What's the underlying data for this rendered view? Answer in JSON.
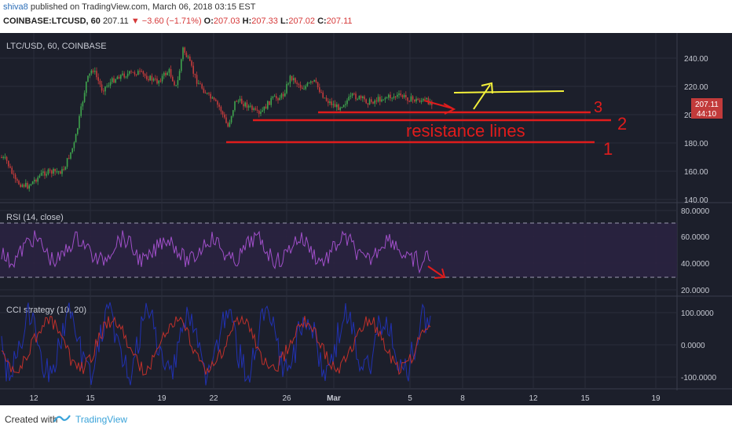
{
  "header": {
    "user": "shiva8",
    "published": "published on TradingView.com, March 06, 2018 03:15 EST",
    "symbol": "COINBASE:LTCUSD, 60",
    "last": "207.11",
    "change": "▼ −3.60 (−1.71%)",
    "o_label": "O:",
    "o": "207.03",
    "h_label": "H:",
    "h": "207.33",
    "l_label": "L:",
    "l": "207.02",
    "c_label": "C:",
    "c": "207.11"
  },
  "price_pane": {
    "title": "LTC/USD, 60, COINBASE",
    "axis_labels": [
      "240.00",
      "220.00",
      "200.00",
      "180.00",
      "160.00",
      "140.00"
    ],
    "last_price": "207.11",
    "countdown": "44:10"
  },
  "rsi_pane": {
    "title": "RSI (14, close)",
    "axis_labels": [
      "80.0000",
      "60.0000",
      "40.0000",
      "20.0000"
    ]
  },
  "cci_pane": {
    "title": "CCI strategy (10, 20)",
    "axis_labels": [
      "100.0000",
      "0.0000",
      "-100.0000"
    ]
  },
  "x_axis": {
    "labels": [
      "12",
      "15",
      "19",
      "22",
      "26",
      "Mar",
      "5",
      "8",
      "12",
      "15",
      "19"
    ]
  },
  "annotations": {
    "text": "resistance lines",
    "n1": "1",
    "n2": "2",
    "n3": "3"
  },
  "footer": {
    "created": "Created with",
    "brand": "TradingView"
  },
  "colors": {
    "background": "#1c1f2b",
    "candle_up": "#3fa34d",
    "candle_down": "#c23b3b",
    "annotation_red": "#e01c1c",
    "annotation_yellow": "#f4f13a",
    "rsi_line": "#a04fc9",
    "cci_red": "#c0302b",
    "cci_blue": "#2233c0"
  }
}
